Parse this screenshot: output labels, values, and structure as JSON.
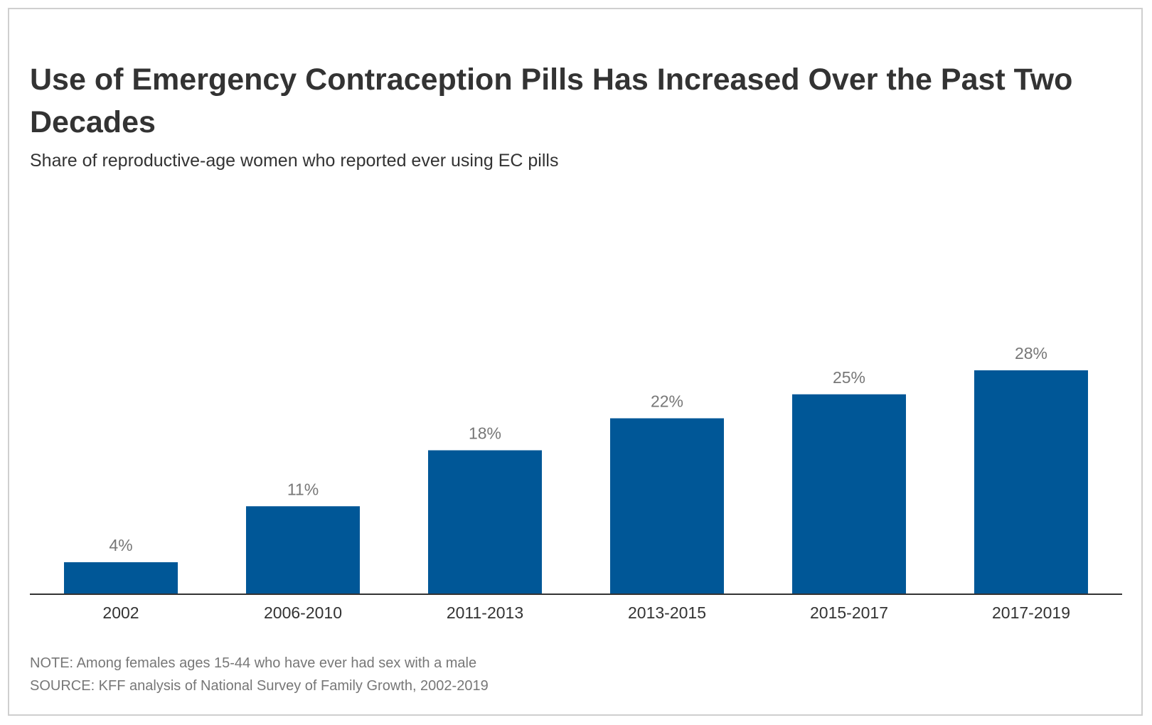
{
  "chart_data": {
    "type": "bar",
    "title": "Use of Emergency Contraception Pills Has Increased Over the Past Two Decades",
    "subtitle": "Share of reproductive-age women who reported ever using EC pills",
    "categories": [
      "2002",
      "2006-2010",
      "2011-2013",
      "2013-2015",
      "2015-2017",
      "2017-2019"
    ],
    "values": [
      4,
      11,
      18,
      22,
      25,
      28
    ],
    "value_labels": [
      "4%",
      "11%",
      "18%",
      "22%",
      "25%",
      "28%"
    ],
    "color": "#005797",
    "note": "NOTE: Among females ages 15-44 who have ever had sex with a male",
    "source": "SOURCE: KFF analysis of National Survey of Family Growth, 2002-2019"
  }
}
